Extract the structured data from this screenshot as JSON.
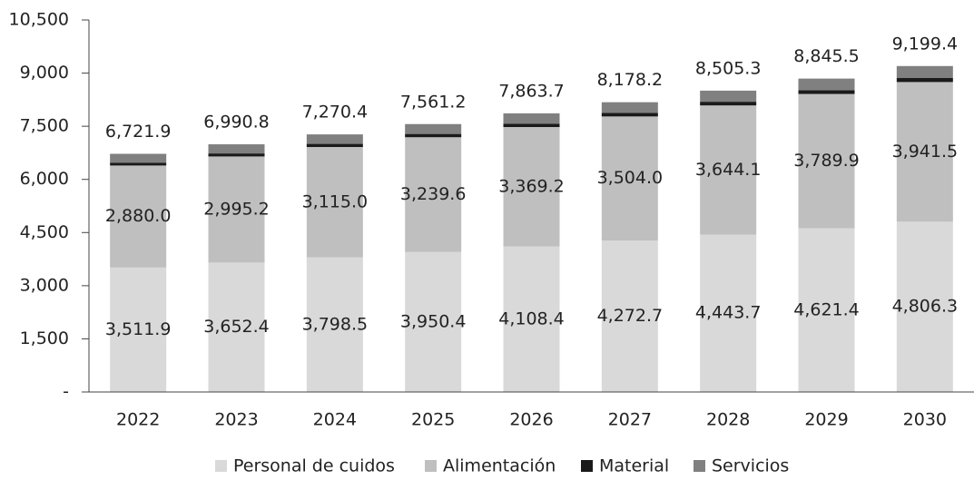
{
  "chart_data": {
    "type": "stacked_bar",
    "categories": [
      "2022",
      "2023",
      "2024",
      "2025",
      "2026",
      "2027",
      "2028",
      "2029",
      "2030"
    ],
    "series": [
      {
        "name": "Personal de cuidos",
        "color": "#d9d9d9",
        "values": [
          3511.9,
          3652.4,
          3798.5,
          3950.4,
          4108.4,
          4272.7,
          4443.7,
          4621.4,
          4806.3
        ],
        "value_labels": [
          "3,511.9",
          "3,652.4",
          "3,798.5",
          "3,950.4",
          "4,108.4",
          "4,272.7",
          "4,443.7",
          "4,621.4",
          "4,806.3"
        ]
      },
      {
        "name": "Alimentación",
        "color": "#bfbfbf",
        "values": [
          2880.0,
          2995.2,
          3115.0,
          3239.6,
          3369.2,
          3504.0,
          3644.1,
          3789.9,
          3941.5
        ],
        "value_labels": [
          "2,880.0",
          "2,995.2",
          "3,115.0",
          "3,239.6",
          "3,369.2",
          "3,504.0",
          "3,644.1",
          "3,789.9",
          "3,941.5"
        ]
      },
      {
        "name": "Material",
        "color": "#1a1a1a",
        "values": [
          82,
          85,
          89,
          93,
          97,
          100,
          104,
          108,
          113
        ]
      },
      {
        "name": "Servicios",
        "color": "#808080",
        "values": [
          248,
          258.2,
          267.9,
          278.2,
          289.1,
          301.5,
          313.5,
          326.2,
          338.6
        ]
      }
    ],
    "totals": [
      6721.9,
      6990.8,
      7270.4,
      7561.2,
      7863.7,
      8178.2,
      8505.3,
      8845.5,
      9199.4
    ],
    "totals_labels": [
      "6,721.9",
      "6,990.8",
      "7,270.4",
      "7,561.2",
      "7,863.7",
      "8,178.2",
      "8,505.3",
      "8,845.5",
      "9,199.4"
    ],
    "ylim": [
      0,
      10500
    ],
    "yticks": [
      {
        "value": 0,
        "label": "-"
      },
      {
        "value": 1500,
        "label": "1,500"
      },
      {
        "value": 3000,
        "label": "3,000"
      },
      {
        "value": 4500,
        "label": "4,500"
      },
      {
        "value": 6000,
        "label": "6,000"
      },
      {
        "value": 7500,
        "label": "7,500"
      },
      {
        "value": 9000,
        "label": "9,000"
      },
      {
        "value": 10500,
        "label": "10,500"
      }
    ],
    "legend": "bottom"
  }
}
